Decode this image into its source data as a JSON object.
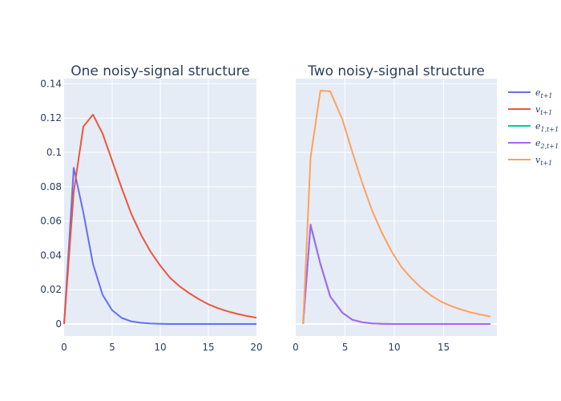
{
  "chart_data": [
    {
      "type": "line",
      "title": "One noisy-signal structure",
      "xlabel": "",
      "ylabel": "",
      "xlim": [
        0,
        20
      ],
      "ylim": [
        -0.007,
        0.143
      ],
      "x_ticks": [
        "0",
        "5",
        "10",
        "15",
        "20"
      ],
      "y_ticks": [
        "0",
        "0.02",
        "0.04",
        "0.06",
        "0.08",
        "0.1",
        "0.12",
        "0.14"
      ],
      "grid": true,
      "series": [
        {
          "name": "e_{t+1}",
          "color": "#636efa",
          "x": [
            0,
            1,
            2,
            3,
            4,
            5,
            6,
            7,
            8,
            9,
            10,
            11,
            12,
            13,
            14,
            15,
            16,
            17,
            18,
            19,
            20
          ],
          "y": [
            0,
            0.091,
            0.065,
            0.035,
            0.017,
            0.008,
            0.0035,
            0.0015,
            0.0007,
            0.0003,
            0.0001,
            0,
            0,
            0,
            0,
            0,
            0,
            0,
            0,
            0,
            0
          ]
        },
        {
          "name": "v_{t+1}",
          "color": "#ef553b",
          "x": [
            0,
            1,
            2,
            3,
            4,
            5,
            6,
            7,
            8,
            9,
            10,
            11,
            12,
            13,
            14,
            15,
            16,
            17,
            18,
            19,
            20
          ],
          "y": [
            0,
            0.077,
            0.115,
            0.122,
            0.111,
            0.095,
            0.079,
            0.064,
            0.052,
            0.042,
            0.034,
            0.027,
            0.022,
            0.018,
            0.0145,
            0.0115,
            0.0092,
            0.0074,
            0.0059,
            0.0047,
            0.0037
          ]
        }
      ]
    },
    {
      "type": "line",
      "title": "Two noisy-signal structure",
      "xlabel": "",
      "ylabel": "",
      "xlim": [
        0,
        20.4
      ],
      "ylim": [
        -0.007,
        0.143
      ],
      "x_ticks": [
        "0",
        "5",
        "10",
        "15"
      ],
      "grid": true,
      "series": [
        {
          "name": "e_{1,t+1}",
          "color": "#00cc96",
          "x": [
            0.75,
            1.5,
            2.5,
            3.5,
            4.75,
            5.75,
            6.75,
            7.75,
            8.75,
            9.75,
            10.75,
            11.75,
            12.75,
            13.75,
            14.75,
            15.75,
            16.75,
            17.75,
            18.75,
            19.75
          ],
          "y": [
            0,
            0.0575,
            0.035,
            0.016,
            0.0065,
            0.0025,
            0.001,
            0.0004,
            0.0001,
            0,
            0,
            0,
            0,
            0,
            0,
            0,
            0,
            0,
            0,
            0
          ]
        },
        {
          "name": "e_{2,t+1}",
          "color": "#ab63fa",
          "x": [
            0.75,
            1.5,
            2.5,
            3.5,
            4.75,
            5.75,
            6.75,
            7.75,
            8.75,
            9.75,
            10.75,
            11.75,
            12.75,
            13.75,
            14.75,
            15.75,
            16.75,
            17.75,
            18.75,
            19.75
          ],
          "y": [
            0,
            0.058,
            0.035,
            0.016,
            0.0065,
            0.0025,
            0.001,
            0.0004,
            0.0001,
            0,
            0,
            0,
            0,
            0,
            0,
            0,
            0,
            0,
            0,
            0
          ]
        },
        {
          "name": "v_{t+1}",
          "color": "#ffa15a",
          "x": [
            0.75,
            1.5,
            2.5,
            3.5,
            4.75,
            5.75,
            6.75,
            7.75,
            8.75,
            9.75,
            10.75,
            11.75,
            12.75,
            13.75,
            14.75,
            15.75,
            16.75,
            17.75,
            18.75,
            19.75
          ],
          "y": [
            0,
            0.097,
            0.136,
            0.1355,
            0.119,
            0.1,
            0.082,
            0.066,
            0.053,
            0.042,
            0.033,
            0.0265,
            0.021,
            0.0165,
            0.013,
            0.0105,
            0.0085,
            0.0068,
            0.0055,
            0.0044
          ]
        }
      ]
    }
  ],
  "legend": {
    "position": "top-right",
    "items": [
      {
        "base": "e",
        "sub": "t+1",
        "color": "#636efa"
      },
      {
        "base": "v",
        "sub": "t+1",
        "color": "#ef553b"
      },
      {
        "base": "e",
        "sub": "1,t+1",
        "color": "#00cc96"
      },
      {
        "base": "e",
        "sub": "2,t+1",
        "color": "#ab63fa"
      },
      {
        "base": "v",
        "sub": "t+1",
        "color": "#ffa15a"
      }
    ]
  }
}
